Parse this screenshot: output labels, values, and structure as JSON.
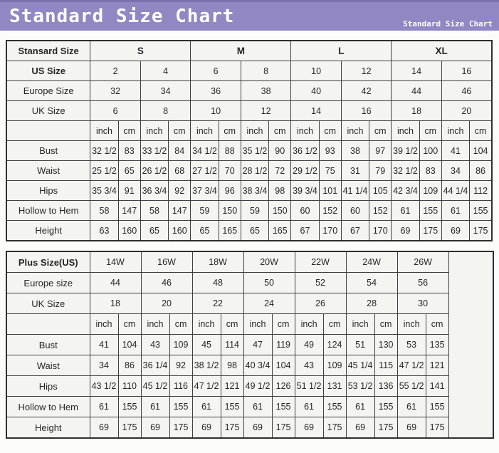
{
  "header": {
    "title": "Standard Size Chart",
    "watermark": "Standard Size Chart",
    "bar_color": "#9187c2",
    "bar_top_strip_color": "#7a70aa",
    "title_color": "#ffffff"
  },
  "standard_table": {
    "rows": [
      {
        "cells": [
          {
            "t": "Stansard Size",
            "b": true,
            "l": true
          },
          {
            "t": "S",
            "b": true,
            "s": 4
          },
          {
            "t": "M",
            "b": true,
            "s": 4
          },
          {
            "t": "L",
            "b": true,
            "s": 4
          },
          {
            "t": "XL",
            "b": true,
            "s": 4
          }
        ]
      },
      {
        "cells": [
          {
            "t": "US Size",
            "b": true,
            "l": true
          },
          {
            "t": "2",
            "s": 2
          },
          {
            "t": "4",
            "s": 2
          },
          {
            "t": "6",
            "s": 2
          },
          {
            "t": "8",
            "s": 2
          },
          {
            "t": "10",
            "s": 2
          },
          {
            "t": "12",
            "s": 2
          },
          {
            "t": "14",
            "s": 2
          },
          {
            "t": "16",
            "s": 2
          }
        ]
      },
      {
        "cells": [
          {
            "t": "Europe Size",
            "l": true
          },
          {
            "t": "32",
            "s": 2
          },
          {
            "t": "34",
            "s": 2
          },
          {
            "t": "36",
            "s": 2
          },
          {
            "t": "38",
            "s": 2
          },
          {
            "t": "40",
            "s": 2
          },
          {
            "t": "42",
            "s": 2
          },
          {
            "t": "44",
            "s": 2
          },
          {
            "t": "46",
            "s": 2
          }
        ]
      },
      {
        "cells": [
          {
            "t": "UK Size",
            "l": true
          },
          {
            "t": "6",
            "s": 2
          },
          {
            "t": "8",
            "s": 2
          },
          {
            "t": "10",
            "s": 2
          },
          {
            "t": "12",
            "s": 2
          },
          {
            "t": "14",
            "s": 2
          },
          {
            "t": "16",
            "s": 2
          },
          {
            "t": "18",
            "s": 2
          },
          {
            "t": "20",
            "s": 2
          }
        ]
      },
      {
        "cells": [
          {
            "t": "",
            "l": true
          },
          {
            "t": "inch"
          },
          {
            "t": "cm"
          },
          {
            "t": "inch"
          },
          {
            "t": "cm"
          },
          {
            "t": "inch"
          },
          {
            "t": "cm"
          },
          {
            "t": "inch"
          },
          {
            "t": "cm"
          },
          {
            "t": "inch"
          },
          {
            "t": "cm"
          },
          {
            "t": "inch"
          },
          {
            "t": "cm"
          },
          {
            "t": "inch"
          },
          {
            "t": "cm"
          },
          {
            "t": "inch"
          },
          {
            "t": "cm"
          }
        ]
      },
      {
        "cells": [
          {
            "t": "Bust",
            "l": true
          },
          {
            "t": "32 1/2"
          },
          {
            "t": "83"
          },
          {
            "t": "33 1/2"
          },
          {
            "t": "84"
          },
          {
            "t": "34 1/2"
          },
          {
            "t": "88"
          },
          {
            "t": "35 1/2"
          },
          {
            "t": "90"
          },
          {
            "t": "36 1/2"
          },
          {
            "t": "93"
          },
          {
            "t": "38"
          },
          {
            "t": "97"
          },
          {
            "t": "39 1/2"
          },
          {
            "t": "100"
          },
          {
            "t": "41"
          },
          {
            "t": "104"
          }
        ]
      },
      {
        "cells": [
          {
            "t": "Waist",
            "l": true
          },
          {
            "t": "25 1/2"
          },
          {
            "t": "65"
          },
          {
            "t": "26 1/2"
          },
          {
            "t": "68"
          },
          {
            "t": "27 1/2"
          },
          {
            "t": "70"
          },
          {
            "t": "28 1/2"
          },
          {
            "t": "72"
          },
          {
            "t": "29 1/2"
          },
          {
            "t": "75"
          },
          {
            "t": "31"
          },
          {
            "t": "79"
          },
          {
            "t": "32 1/2"
          },
          {
            "t": "83"
          },
          {
            "t": "34"
          },
          {
            "t": "86"
          }
        ]
      },
      {
        "cells": [
          {
            "t": "Hips",
            "l": true
          },
          {
            "t": "35 3/4"
          },
          {
            "t": "91"
          },
          {
            "t": "36 3/4"
          },
          {
            "t": "92"
          },
          {
            "t": "37 3/4"
          },
          {
            "t": "96"
          },
          {
            "t": "38 3/4"
          },
          {
            "t": "98"
          },
          {
            "t": "39 3/4"
          },
          {
            "t": "101"
          },
          {
            "t": "41 1/4"
          },
          {
            "t": "105"
          },
          {
            "t": "42 3/4"
          },
          {
            "t": "109"
          },
          {
            "t": "44 1/4"
          },
          {
            "t": "112"
          }
        ]
      },
      {
        "cells": [
          {
            "t": "Hollow to Hem",
            "l": true
          },
          {
            "t": "58"
          },
          {
            "t": "147"
          },
          {
            "t": "58"
          },
          {
            "t": "147"
          },
          {
            "t": "59"
          },
          {
            "t": "150"
          },
          {
            "t": "59"
          },
          {
            "t": "150"
          },
          {
            "t": "60"
          },
          {
            "t": "152"
          },
          {
            "t": "60"
          },
          {
            "t": "152"
          },
          {
            "t": "61"
          },
          {
            "t": "155"
          },
          {
            "t": "61"
          },
          {
            "t": "155"
          }
        ]
      },
      {
        "cells": [
          {
            "t": "Height",
            "l": true
          },
          {
            "t": "63"
          },
          {
            "t": "160"
          },
          {
            "t": "65"
          },
          {
            "t": "160"
          },
          {
            "t": "65"
          },
          {
            "t": "165"
          },
          {
            "t": "65"
          },
          {
            "t": "165"
          },
          {
            "t": "67"
          },
          {
            "t": "170"
          },
          {
            "t": "67"
          },
          {
            "t": "170"
          },
          {
            "t": "69"
          },
          {
            "t": "175"
          },
          {
            "t": "69"
          },
          {
            "t": "175"
          }
        ]
      }
    ]
  },
  "plus_table": {
    "rows": [
      {
        "cells": [
          {
            "t": "Plus Size(US)",
            "b": true,
            "l": true
          },
          {
            "t": "14W",
            "s": 2
          },
          {
            "t": "16W",
            "s": 2
          },
          {
            "t": "18W",
            "s": 2
          },
          {
            "t": "20W",
            "s": 2
          },
          {
            "t": "22W",
            "s": 2
          },
          {
            "t": "24W",
            "s": 2
          },
          {
            "t": "26W",
            "s": 2
          },
          {
            "t": "",
            "rs": 9,
            "e": true
          }
        ]
      },
      {
        "cells": [
          {
            "t": "Europe size",
            "l": true
          },
          {
            "t": "44",
            "s": 2
          },
          {
            "t": "46",
            "s": 2
          },
          {
            "t": "48",
            "s": 2
          },
          {
            "t": "50",
            "s": 2
          },
          {
            "t": "52",
            "s": 2
          },
          {
            "t": "54",
            "s": 2
          },
          {
            "t": "56",
            "s": 2
          }
        ]
      },
      {
        "cells": [
          {
            "t": "UK Size",
            "l": true
          },
          {
            "t": "18",
            "s": 2
          },
          {
            "t": "20",
            "s": 2
          },
          {
            "t": "22",
            "s": 2
          },
          {
            "t": "24",
            "s": 2
          },
          {
            "t": "26",
            "s": 2
          },
          {
            "t": "28",
            "s": 2
          },
          {
            "t": "30",
            "s": 2
          }
        ]
      },
      {
        "cells": [
          {
            "t": "",
            "l": true
          },
          {
            "t": "inch"
          },
          {
            "t": "cm"
          },
          {
            "t": "inch"
          },
          {
            "t": "cm"
          },
          {
            "t": "inch"
          },
          {
            "t": "cm"
          },
          {
            "t": "inch"
          },
          {
            "t": "cm"
          },
          {
            "t": "inch"
          },
          {
            "t": "cm"
          },
          {
            "t": "inch"
          },
          {
            "t": "cm"
          },
          {
            "t": "inch"
          },
          {
            "t": "cm"
          }
        ]
      },
      {
        "cells": [
          {
            "t": "Bust",
            "l": true
          },
          {
            "t": "41"
          },
          {
            "t": "104"
          },
          {
            "t": "43"
          },
          {
            "t": "109"
          },
          {
            "t": "45"
          },
          {
            "t": "114"
          },
          {
            "t": "47"
          },
          {
            "t": "119"
          },
          {
            "t": "49"
          },
          {
            "t": "124"
          },
          {
            "t": "51"
          },
          {
            "t": "130"
          },
          {
            "t": "53"
          },
          {
            "t": "135"
          }
        ]
      },
      {
        "cells": [
          {
            "t": "Waist",
            "l": true
          },
          {
            "t": "34"
          },
          {
            "t": "86"
          },
          {
            "t": "36 1/4"
          },
          {
            "t": "92"
          },
          {
            "t": "38 1/2"
          },
          {
            "t": "98"
          },
          {
            "t": "40 3/4"
          },
          {
            "t": "104"
          },
          {
            "t": "43"
          },
          {
            "t": "109"
          },
          {
            "t": "45 1/4"
          },
          {
            "t": "115"
          },
          {
            "t": "47 1/2"
          },
          {
            "t": "121"
          }
        ]
      },
      {
        "cells": [
          {
            "t": "Hips",
            "l": true
          },
          {
            "t": "43 1/2"
          },
          {
            "t": "110"
          },
          {
            "t": "45 1/2"
          },
          {
            "t": "116"
          },
          {
            "t": "47 1/2"
          },
          {
            "t": "121"
          },
          {
            "t": "49 1/2"
          },
          {
            "t": "126"
          },
          {
            "t": "51 1/2"
          },
          {
            "t": "131"
          },
          {
            "t": "53 1/2"
          },
          {
            "t": "136"
          },
          {
            "t": "55 1/2"
          },
          {
            "t": "141"
          }
        ]
      },
      {
        "cells": [
          {
            "t": "Hollow to Hem",
            "l": true
          },
          {
            "t": "61"
          },
          {
            "t": "155"
          },
          {
            "t": "61"
          },
          {
            "t": "155"
          },
          {
            "t": "61"
          },
          {
            "t": "155"
          },
          {
            "t": "61"
          },
          {
            "t": "155"
          },
          {
            "t": "61"
          },
          {
            "t": "155"
          },
          {
            "t": "61"
          },
          {
            "t": "155"
          },
          {
            "t": "61"
          },
          {
            "t": "155"
          }
        ]
      },
      {
        "cells": [
          {
            "t": "Height",
            "l": true
          },
          {
            "t": "69"
          },
          {
            "t": "175"
          },
          {
            "t": "69"
          },
          {
            "t": "175"
          },
          {
            "t": "69"
          },
          {
            "t": "175"
          },
          {
            "t": "69"
          },
          {
            "t": "175"
          },
          {
            "t": "69"
          },
          {
            "t": "175"
          },
          {
            "t": "69"
          },
          {
            "t": "175"
          },
          {
            "t": "69"
          },
          {
            "t": "175"
          }
        ]
      }
    ]
  }
}
